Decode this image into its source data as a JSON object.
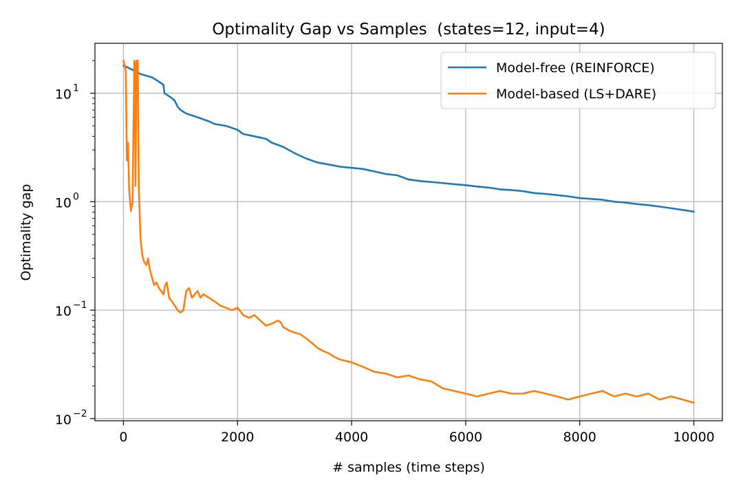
{
  "chart_data": {
    "type": "line",
    "title": "Optimality Gap vs Samples  (states=12, input=4)",
    "xlabel": "# samples (time steps)",
    "ylabel": "Optimality gap",
    "xlim": [
      -500,
      10500
    ],
    "ylim_log10": [
      -2.02,
      1.46
    ],
    "yscale": "log",
    "grid": true,
    "legend_position": "top-right",
    "x_ticks": [
      0,
      2000,
      4000,
      6000,
      8000,
      10000
    ],
    "x_tick_labels": [
      "0",
      "2000",
      "4000",
      "6000",
      "8000",
      "10000"
    ],
    "y_ticks_exp": [
      -2,
      -1,
      0,
      1
    ],
    "y_tick_base": "10",
    "series": [
      {
        "name": "Model-free (REINFORCE)",
        "color": "#1f77b4",
        "x": [
          0,
          100,
          200,
          300,
          400,
          500,
          550,
          700,
          720,
          850,
          900,
          950,
          1000,
          1100,
          1300,
          1500,
          1600,
          1800,
          2000,
          2100,
          2300,
          2500,
          2600,
          2800,
          3000,
          3200,
          3400,
          3600,
          3800,
          4000,
          4200,
          4400,
          4600,
          4800,
          5000,
          5200,
          5500,
          5800,
          6000,
          6200,
          6400,
          6600,
          6800,
          7000,
          7200,
          7400,
          7600,
          7800,
          8000,
          8200,
          8400,
          8600,
          8800,
          9000,
          9200,
          9400,
          9600,
          9800,
          10000
        ],
        "values": [
          18,
          17,
          16,
          15,
          14.5,
          14,
          13.5,
          12,
          10,
          9,
          8.5,
          7.5,
          7,
          6.5,
          6,
          5.5,
          5.2,
          5,
          4.6,
          4.2,
          4,
          3.8,
          3.5,
          3.2,
          2.8,
          2.5,
          2.3,
          2.2,
          2.1,
          2.05,
          2.0,
          1.9,
          1.8,
          1.75,
          1.6,
          1.55,
          1.5,
          1.45,
          1.42,
          1.38,
          1.35,
          1.3,
          1.28,
          1.25,
          1.2,
          1.18,
          1.15,
          1.12,
          1.08,
          1.06,
          1.04,
          1.0,
          0.98,
          0.95,
          0.93,
          0.9,
          0.87,
          0.84,
          0.81
        ]
      },
      {
        "name": "Model-based (LS+DARE)",
        "color": "#ff7f0e",
        "x": [
          0,
          40,
          60,
          80,
          100,
          130,
          160,
          190,
          200,
          210,
          230,
          250,
          270,
          300,
          330,
          360,
          400,
          430,
          460,
          500,
          540,
          580,
          620,
          660,
          700,
          730,
          760,
          800,
          850,
          900,
          950,
          1000,
          1050,
          1100,
          1150,
          1200,
          1250,
          1300,
          1350,
          1400,
          1500,
          1600,
          1700,
          1800,
          1900,
          2000,
          2100,
          2200,
          2300,
          2400,
          2500,
          2600,
          2700,
          2750,
          2800,
          2900,
          3000,
          3100,
          3200,
          3300,
          3400,
          3500,
          3600,
          3700,
          3800,
          3900,
          4000,
          4200,
          4400,
          4600,
          4800,
          5000,
          5200,
          5400,
          5600,
          5800,
          6000,
          6200,
          6400,
          6600,
          6800,
          7000,
          7200,
          7400,
          7600,
          7800,
          8000,
          8200,
          8400,
          8600,
          8800,
          9000,
          9200,
          9400,
          9600,
          9800,
          10000
        ],
        "values": [
          20,
          16,
          2.4,
          3.5,
          1.3,
          0.82,
          1.0,
          20,
          19,
          1.4,
          20,
          20,
          1.3,
          0.45,
          0.32,
          0.28,
          0.26,
          0.3,
          0.24,
          0.2,
          0.17,
          0.18,
          0.16,
          0.15,
          0.14,
          0.17,
          0.18,
          0.13,
          0.12,
          0.11,
          0.1,
          0.095,
          0.1,
          0.15,
          0.16,
          0.13,
          0.14,
          0.15,
          0.13,
          0.14,
          0.13,
          0.12,
          0.11,
          0.105,
          0.1,
          0.105,
          0.09,
          0.085,
          0.09,
          0.08,
          0.072,
          0.075,
          0.08,
          0.078,
          0.07,
          0.065,
          0.062,
          0.06,
          0.055,
          0.05,
          0.045,
          0.042,
          0.04,
          0.037,
          0.035,
          0.034,
          0.033,
          0.03,
          0.027,
          0.026,
          0.024,
          0.025,
          0.023,
          0.022,
          0.019,
          0.018,
          0.017,
          0.016,
          0.017,
          0.018,
          0.017,
          0.017,
          0.018,
          0.017,
          0.016,
          0.015,
          0.016,
          0.017,
          0.018,
          0.016,
          0.017,
          0.016,
          0.017,
          0.015,
          0.016,
          0.015,
          0.014
        ]
      }
    ]
  }
}
